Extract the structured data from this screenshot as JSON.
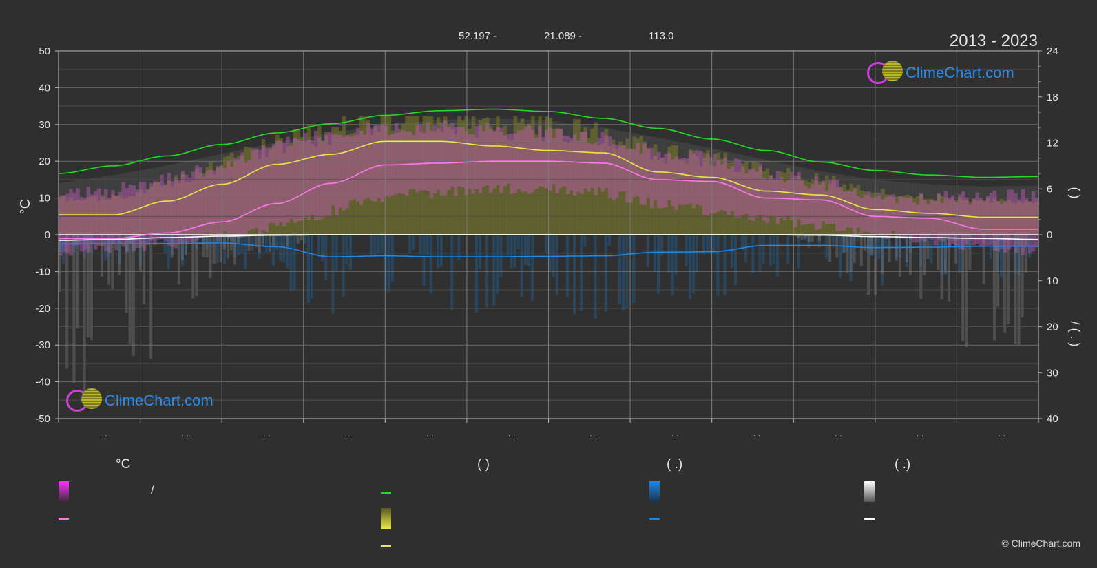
{
  "header": {
    "year_range": "2013 - 2023",
    "latitude_label": "52.197 -",
    "longitude_label": "21.089 -",
    "elevation_label": "113.0"
  },
  "logo": {
    "text": "ClimeChart.com"
  },
  "copyright": "© ClimeChart.com",
  "colors": {
    "background": "#2f2f2f",
    "daylight": "#22dd22",
    "sunshine": "#e8e84a",
    "temp_mean": "#ff77ee",
    "temp_range": "#e040e0",
    "rain": "#1e88e5",
    "snow": "#ffffff"
  },
  "legend": {
    "temperature": {
      "title": "°C",
      "range_label": "/"
    },
    "sunshine": {
      "title": "(          )"
    },
    "rain": {
      "title": "(   .)"
    },
    "snow": {
      "title": "(   .)"
    }
  },
  "chart_data": {
    "type": "line",
    "x_tick_labels": [
      ". .",
      ". .",
      ". .",
      ". .",
      ". .",
      ". .",
      ". .",
      ". .",
      ". .",
      ". .",
      ". .",
      ". ."
    ],
    "y_left": {
      "label": "°C",
      "range": [
        -50,
        50
      ],
      "ticks": [
        50,
        40,
        30,
        20,
        10,
        0,
        -10,
        -20,
        -30,
        -40,
        -50
      ]
    },
    "y_right_top": {
      "label": "(   )",
      "range": [
        0,
        24
      ],
      "ticks": [
        24,
        18,
        12,
        6,
        0
      ]
    },
    "y_right_bottom": {
      "label": "/   (  .  )",
      "range": [
        0,
        40
      ],
      "ticks": [
        10,
        20,
        30,
        40
      ]
    },
    "grid": true,
    "series": [
      {
        "key": "daylight",
        "axis": "right_top",
        "values": [
          8.0,
          9.0,
          10.3,
          11.8,
          13.3,
          14.5,
          15.6,
          16.2,
          16.4,
          16.1,
          15.2,
          13.9,
          12.5,
          11.0,
          9.5,
          8.4,
          7.8,
          7.5,
          7.6
        ]
      },
      {
        "key": "sunshine",
        "axis": "right_top",
        "values": [
          2.6,
          2.6,
          4.4,
          6.6,
          9.2,
          10.5,
          12.2,
          12.2,
          11.6,
          11.0,
          10.7,
          8.2,
          7.5,
          5.7,
          5.2,
          3.3,
          2.8,
          2.3,
          2.3
        ]
      },
      {
        "key": "temp_mean",
        "axis": "left",
        "values": [
          -1.0,
          -1.0,
          0.5,
          3.5,
          8.5,
          14.0,
          19.0,
          19.5,
          20.0,
          20.0,
          19.5,
          15.0,
          14.5,
          10.0,
          9.5,
          5.0,
          4.5,
          1.5,
          1.5
        ]
      },
      {
        "key": "rain",
        "axis": "right_bottom",
        "values": [
          2.0,
          1.9,
          1.9,
          1.8,
          2.6,
          4.8,
          4.6,
          4.8,
          4.8,
          4.7,
          4.6,
          3.8,
          3.7,
          2.3,
          2.3,
          2.8,
          2.7,
          2.5,
          2.5
        ]
      },
      {
        "key": "snow",
        "axis": "right_bottom",
        "values": [
          1.2,
          1.0,
          0.6,
          0.3,
          0.1,
          0.0,
          0.0,
          0.0,
          0.0,
          0.0,
          0.0,
          0.0,
          0.0,
          0.0,
          0.1,
          0.4,
          0.6,
          0.8,
          1.0
        ]
      }
    ],
    "bands": {
      "temp_max_daily": [
        13,
        14,
        17,
        21,
        26,
        30,
        31,
        31,
        31,
        30,
        28,
        25,
        23,
        19,
        16,
        13,
        12,
        12,
        13
      ],
      "temp_min_daily": [
        -6,
        -5,
        -4,
        -2,
        1,
        5,
        9,
        10,
        11,
        11,
        10,
        7,
        5,
        3,
        1,
        -1,
        -3,
        -5,
        -6
      ]
    }
  }
}
